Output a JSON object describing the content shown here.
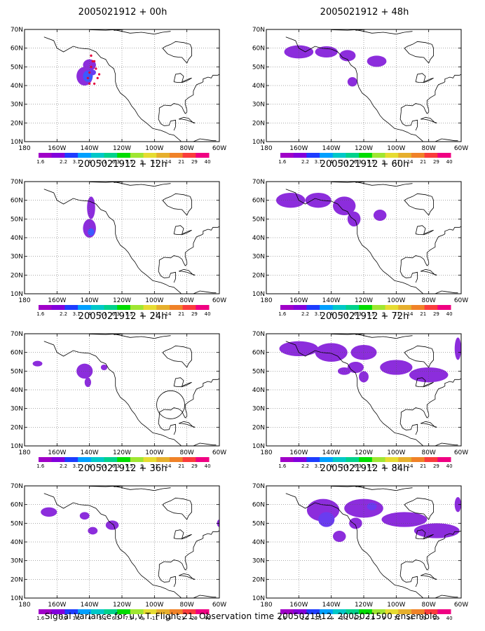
{
  "caption": "Signal Variance for u,v,T. Flight 21. Observation time 2005021912. 2005021500 ensemble.",
  "lat_labels": [
    "70N",
    "60N",
    "50N",
    "40N",
    "30N",
    "20N",
    "10N"
  ],
  "lon_labels": [
    "180",
    "160W",
    "140W",
    "120W",
    "100W",
    "80W",
    "60W"
  ],
  "colorbar": {
    "labels": [
      "1.6",
      "2.2",
      "3.1",
      "4",
      "5.1",
      "6.3",
      "7.5",
      "9",
      "11",
      "14",
      "21",
      "29",
      "40"
    ],
    "colors": [
      "#a000c8",
      "#8200dc",
      "#1e3cff",
      "#00a0ff",
      "#00c8c8",
      "#00d28c",
      "#00dc00",
      "#a0e632",
      "#e6dc32",
      "#e6af2d",
      "#f08228",
      "#fa3c3c",
      "#f00082"
    ]
  },
  "panels": [
    {
      "title": "2005021912 + 00h",
      "forecast_hour": 0
    },
    {
      "title": "2005021912 + 48h",
      "forecast_hour": 48
    },
    {
      "title": "2005021912 + 12h",
      "forecast_hour": 12
    },
    {
      "title": "2005021912 + 60h",
      "forecast_hour": 60
    },
    {
      "title": "2005021912 + 24h",
      "forecast_hour": 24
    },
    {
      "title": "2005021912 + 72h",
      "forecast_hour": 72
    },
    {
      "title": "2005021912 + 36h",
      "forecast_hour": 36
    },
    {
      "title": "2005021912 + 84h",
      "forecast_hour": 84
    }
  ],
  "colors": {
    "low_variance": "#8c2ddc",
    "mid_variance": "#6a3cf0",
    "high_variance": "#3c5aff",
    "flight_track": "#e6003c"
  }
}
